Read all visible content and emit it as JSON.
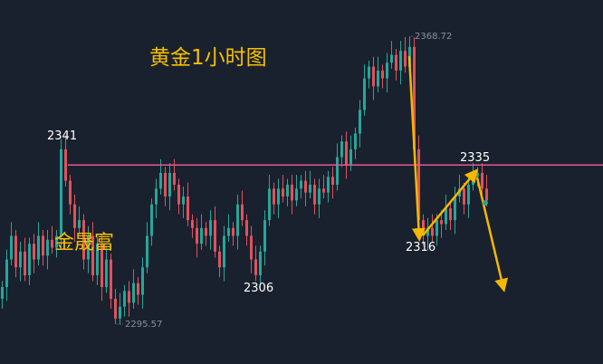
{
  "chart_data": {
    "type": "candlestick",
    "title": "黄金1小时图",
    "watermark": "金晟富",
    "ylim": [
      2295.57,
      2368.72
    ],
    "close": [
      2305,
      2312,
      2318,
      2310,
      2314,
      2308,
      2316,
      2312,
      2318,
      2313,
      2317,
      2315,
      2318,
      2340,
      2332,
      2326,
      2320,
      2322,
      2312,
      2318,
      2308,
      2316,
      2305,
      2312,
      2302,
      2297,
      2300,
      2304,
      2301,
      2306,
      2303,
      2310,
      2318,
      2326,
      2330,
      2334,
      2328,
      2334,
      2331,
      2326,
      2328,
      2322,
      2320,
      2316,
      2320,
      2318,
      2322,
      2314,
      2310,
      2318,
      2320,
      2318,
      2326,
      2322,
      2318,
      2312,
      2308,
      2314,
      2322,
      2330,
      2326,
      2330,
      2328,
      2331,
      2327,
      2330,
      2332,
      2329,
      2331,
      2326,
      2330,
      2329,
      2333,
      2331,
      2338,
      2342,
      2336,
      2340,
      2344,
      2350,
      2358,
      2361,
      2356,
      2360,
      2358,
      2362,
      2364,
      2360,
      2365,
      2361,
      2366,
      2340,
      2322,
      2318,
      2320,
      2318,
      2322,
      2321,
      2325,
      2322,
      2328,
      2330,
      2326,
      2331,
      2333,
      2334,
      2330,
      2327
    ],
    "extremes": {
      "high": {
        "value": "2368.72",
        "price": 2368.72,
        "index": 90
      },
      "low": {
        "value": "2295.57",
        "price": 2295.57,
        "index": 25
      }
    },
    "resistance_line": 2336,
    "annotations": {
      "a2341": "2341",
      "a2306": "2306",
      "a2316": "2316",
      "a2335": "2335"
    },
    "colors": {
      "background": "#1a212e",
      "up": "#26a69a",
      "down": "#e0525c",
      "line": "#e8559a",
      "arrow": "#f5b800",
      "text_accent": "#f5c000"
    }
  }
}
